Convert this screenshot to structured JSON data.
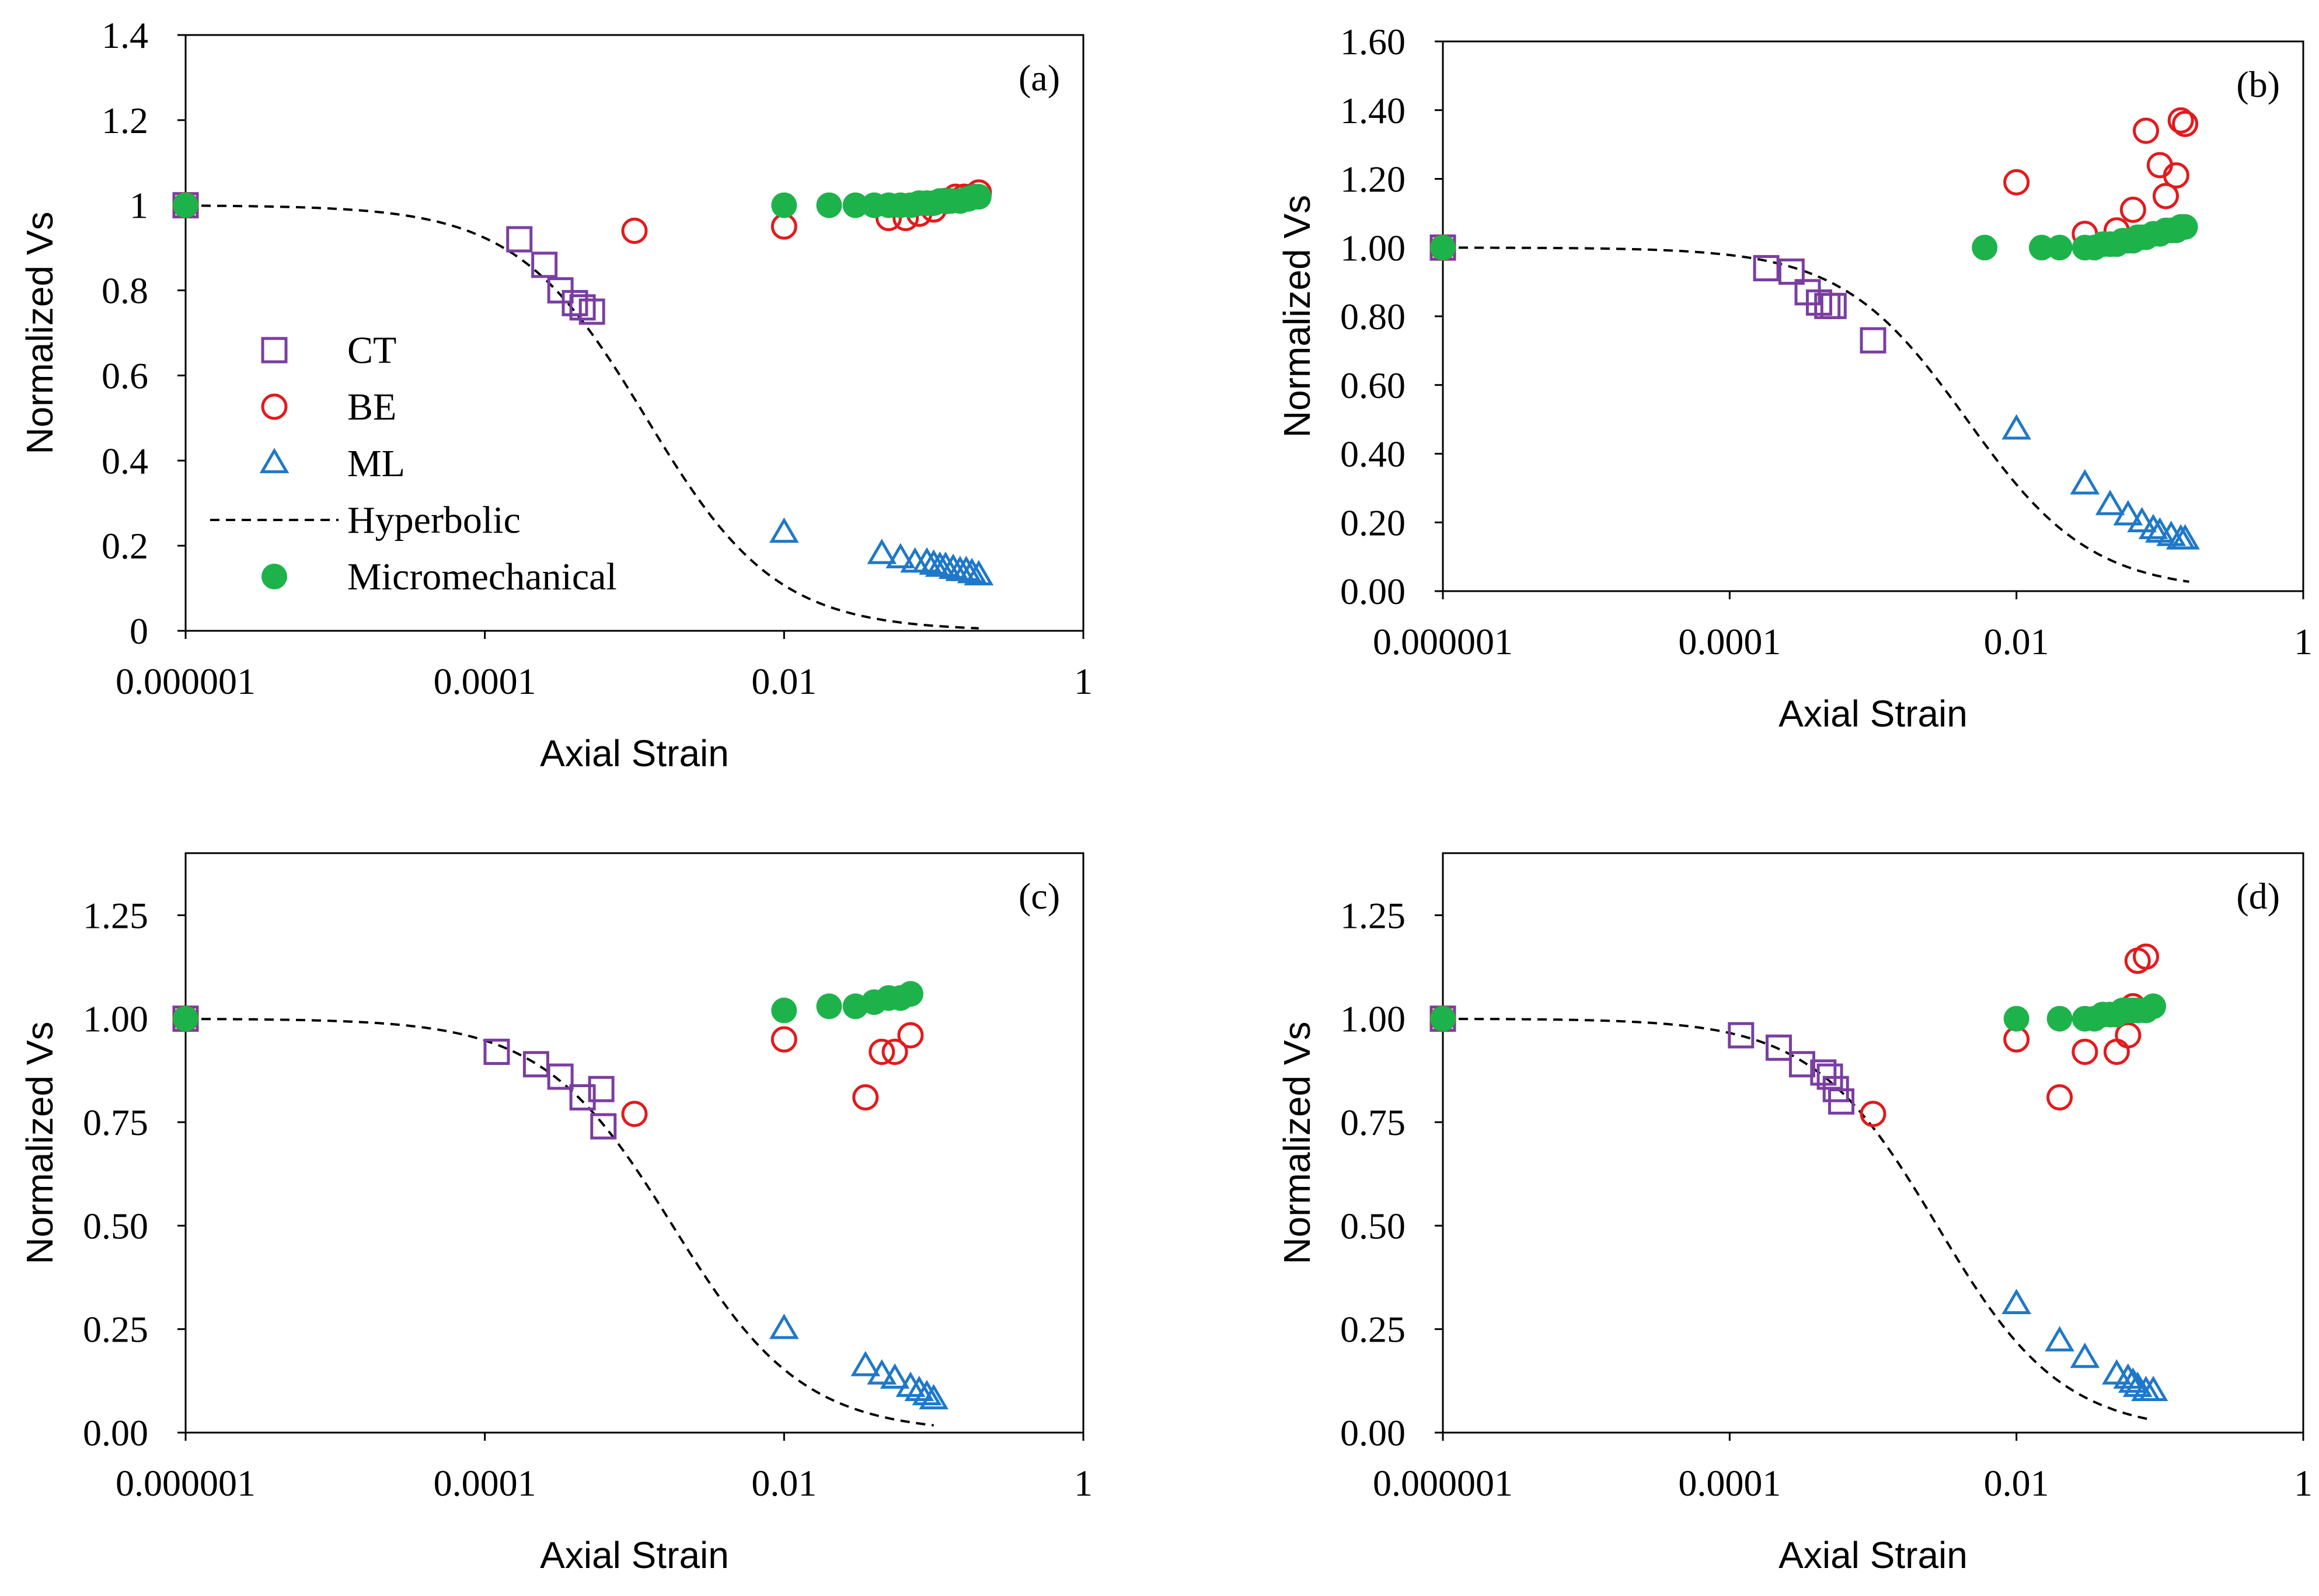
{
  "colors": {
    "ct": "#7a3ea1",
    "be": "#e31a1c",
    "ml": "#1f78c8",
    "hyperbolic": "#000000",
    "micromechanical": "#1db34a"
  },
  "legend": {
    "entries": [
      {
        "key": "ct",
        "label": "CT",
        "marker": "square-open"
      },
      {
        "key": "be",
        "label": "BE",
        "marker": "circle-open"
      },
      {
        "key": "ml",
        "label": "ML",
        "marker": "triangle-open"
      },
      {
        "key": "hyperbolic",
        "label": "Hyperbolic",
        "marker": "dashed-line"
      },
      {
        "key": "micromechanical",
        "label": "Micromechanical",
        "marker": "circle-filled"
      }
    ],
    "location": "panel (a), lower-left"
  },
  "chart_data": [
    {
      "type": "scatter",
      "panel_label": "(a)",
      "xlabel": "Axial Strain",
      "ylabel": "Normalized Vs",
      "xscale": "log",
      "xlim": [
        1e-06,
        1
      ],
      "xticks": [
        {
          "v": 1e-06,
          "label": "0.000001"
        },
        {
          "v": 0.0001,
          "label": "0.0001"
        },
        {
          "v": 0.01,
          "label": "0.01"
        },
        {
          "v": 1,
          "label": "1"
        }
      ],
      "ylim": [
        0,
        1.4
      ],
      "yticks": [
        {
          "v": 0,
          "label": "0"
        },
        {
          "v": 0.2,
          "label": "0.2"
        },
        {
          "v": 0.4,
          "label": "0.4"
        },
        {
          "v": 0.6,
          "label": "0.6"
        },
        {
          "v": 0.8,
          "label": "0.8"
        },
        {
          "v": 1.0,
          "label": "1"
        },
        {
          "v": 1.2,
          "label": "1.2"
        },
        {
          "v": 1.4,
          "label": "1.4"
        }
      ],
      "hyperbolic_ref": 0.0012,
      "hyperbolic_xmax": 0.2,
      "series": [
        {
          "name": "CT",
          "points": [
            [
              1e-06,
              1.0
            ],
            [
              0.00017,
              0.92
            ],
            [
              0.00025,
              0.86
            ],
            [
              0.00032,
              0.8
            ],
            [
              0.0004,
              0.77
            ],
            [
              0.00045,
              0.76
            ],
            [
              0.00052,
              0.75
            ]
          ]
        },
        {
          "name": "BE",
          "points": [
            [
              1e-06,
              1.0
            ],
            [
              0.001,
              0.94
            ],
            [
              0.01,
              0.95
            ],
            [
              0.05,
              0.97
            ],
            [
              0.065,
              0.97
            ],
            [
              0.08,
              0.98
            ],
            [
              0.1,
              0.99
            ],
            [
              0.12,
              1.01
            ],
            [
              0.14,
              1.02
            ],
            [
              0.16,
              1.02
            ],
            [
              0.18,
              1.02
            ],
            [
              0.2,
              1.03
            ]
          ]
        },
        {
          "name": "ML",
          "points": [
            [
              0.01,
              0.23
            ],
            [
              0.045,
              0.18
            ],
            [
              0.06,
              0.17
            ],
            [
              0.075,
              0.16
            ],
            [
              0.09,
              0.16
            ],
            [
              0.1,
              0.155
            ],
            [
              0.11,
              0.15
            ],
            [
              0.12,
              0.15
            ],
            [
              0.135,
              0.145
            ],
            [
              0.15,
              0.14
            ],
            [
              0.165,
              0.14
            ],
            [
              0.18,
              0.135
            ],
            [
              0.2,
              0.13
            ]
          ]
        },
        {
          "name": "Micromechanical",
          "points": [
            [
              1e-06,
              1.0
            ],
            [
              0.01,
              1.0
            ],
            [
              0.02,
              1.0
            ],
            [
              0.03,
              1.0
            ],
            [
              0.04,
              1.0
            ],
            [
              0.05,
              1.0
            ],
            [
              0.06,
              1.0
            ],
            [
              0.07,
              1.0
            ],
            [
              0.08,
              1.005
            ],
            [
              0.09,
              1.005
            ],
            [
              0.1,
              1.005
            ],
            [
              0.11,
              1.01
            ],
            [
              0.12,
              1.01
            ],
            [
              0.13,
              1.01
            ],
            [
              0.15,
              1.01
            ],
            [
              0.17,
              1.015
            ],
            [
              0.19,
              1.02
            ],
            [
              0.2,
              1.02
            ]
          ]
        }
      ]
    },
    {
      "type": "scatter",
      "panel_label": "(b)",
      "xlabel": "Axial Strain",
      "ylabel": "Normalized Vs",
      "xscale": "log",
      "xlim": [
        1e-06,
        1
      ],
      "xticks": [
        {
          "v": 1e-06,
          "label": "0.000001"
        },
        {
          "v": 0.0001,
          "label": "0.0001"
        },
        {
          "v": 0.01,
          "label": "0.01"
        },
        {
          "v": 1,
          "label": "1"
        }
      ],
      "ylim": [
        0,
        1.6
      ],
      "yticks": [
        {
          "v": 0,
          "label": "0.00"
        },
        {
          "v": 0.2,
          "label": "0.20"
        },
        {
          "v": 0.4,
          "label": "0.40"
        },
        {
          "v": 0.6,
          "label": "0.60"
        },
        {
          "v": 0.8,
          "label": "0.80"
        },
        {
          "v": 1.0,
          "label": "1.00"
        },
        {
          "v": 1.2,
          "label": "1.20"
        },
        {
          "v": 1.4,
          "label": "1.40"
        },
        {
          "v": 1.6,
          "label": "1.60"
        }
      ],
      "hyperbolic_ref": 0.0045,
      "hyperbolic_xmax": 0.16,
      "series": [
        {
          "name": "CT",
          "points": [
            [
              1e-06,
              1.0
            ],
            [
              0.00018,
              0.94
            ],
            [
              0.00027,
              0.93
            ],
            [
              0.00035,
              0.87
            ],
            [
              0.00042,
              0.84
            ],
            [
              0.00048,
              0.83
            ],
            [
              0.00053,
              0.83
            ],
            [
              0.001,
              0.73
            ]
          ]
        },
        {
          "name": "BE",
          "points": [
            [
              1e-06,
              1.0
            ],
            [
              0.01,
              1.19
            ],
            [
              0.03,
              1.04
            ],
            [
              0.05,
              1.05
            ],
            [
              0.065,
              1.11
            ],
            [
              0.08,
              1.34
            ],
            [
              0.1,
              1.24
            ],
            [
              0.11,
              1.15
            ],
            [
              0.13,
              1.21
            ],
            [
              0.14,
              1.37
            ],
            [
              0.15,
              1.36
            ]
          ]
        },
        {
          "name": "ML",
          "points": [
            [
              0.01,
              0.47
            ],
            [
              0.03,
              0.31
            ],
            [
              0.045,
              0.25
            ],
            [
              0.06,
              0.22
            ],
            [
              0.075,
              0.2
            ],
            [
              0.09,
              0.18
            ],
            [
              0.1,
              0.17
            ],
            [
              0.12,
              0.16
            ],
            [
              0.14,
              0.15
            ],
            [
              0.15,
              0.15
            ]
          ]
        },
        {
          "name": "Micromechanical",
          "points": [
            [
              1e-06,
              1.0
            ],
            [
              0.006,
              1.0
            ],
            [
              0.015,
              1.0
            ],
            [
              0.02,
              1.0
            ],
            [
              0.03,
              1.0
            ],
            [
              0.035,
              1.0
            ],
            [
              0.04,
              1.01
            ],
            [
              0.045,
              1.01
            ],
            [
              0.05,
              1.01
            ],
            [
              0.055,
              1.02
            ],
            [
              0.06,
              1.02
            ],
            [
              0.065,
              1.02
            ],
            [
              0.07,
              1.03
            ],
            [
              0.075,
              1.03
            ],
            [
              0.08,
              1.03
            ],
            [
              0.09,
              1.04
            ],
            [
              0.1,
              1.04
            ],
            [
              0.11,
              1.05
            ],
            [
              0.12,
              1.05
            ],
            [
              0.13,
              1.05
            ],
            [
              0.14,
              1.06
            ],
            [
              0.15,
              1.06
            ]
          ]
        }
      ]
    },
    {
      "type": "scatter",
      "panel_label": "(c)",
      "xlabel": "Axial Strain",
      "ylabel": "Normalized Vs",
      "xscale": "log",
      "xlim": [
        1e-06,
        1
      ],
      "xticks": [
        {
          "v": 1e-06,
          "label": "0.000001"
        },
        {
          "v": 0.0001,
          "label": "0.0001"
        },
        {
          "v": 0.01,
          "label": "0.01"
        },
        {
          "v": 1,
          "label": "1"
        }
      ],
      "ylim": [
        0,
        1.4
      ],
      "yticks": [
        {
          "v": 0,
          "label": "0.00"
        },
        {
          "v": 0.25,
          "label": "0.25"
        },
        {
          "v": 0.5,
          "label": "0.50"
        },
        {
          "v": 0.75,
          "label": "0.75"
        },
        {
          "v": 1.0,
          "label": "1.00"
        },
        {
          "v": 1.25,
          "label": "1.25"
        }
      ],
      "hyperbolic_ref": 0.0018,
      "hyperbolic_xmax": 0.1,
      "series": [
        {
          "name": "CT",
          "points": [
            [
              1e-06,
              1.0
            ],
            [
              0.00012,
              0.92
            ],
            [
              0.00022,
              0.89
            ],
            [
              0.00032,
              0.86
            ],
            [
              0.00045,
              0.81
            ],
            [
              0.0006,
              0.83
            ],
            [
              0.00062,
              0.74
            ]
          ]
        },
        {
          "name": "BE",
          "points": [
            [
              1e-06,
              1.0
            ],
            [
              0.001,
              0.77
            ],
            [
              0.01,
              0.95
            ],
            [
              0.035,
              0.81
            ],
            [
              0.045,
              0.92
            ],
            [
              0.055,
              0.92
            ],
            [
              0.07,
              0.96
            ]
          ]
        },
        {
          "name": "ML",
          "points": [
            [
              0.01,
              0.25
            ],
            [
              0.035,
              0.16
            ],
            [
              0.045,
              0.14
            ],
            [
              0.055,
              0.13
            ],
            [
              0.07,
              0.11
            ],
            [
              0.08,
              0.1
            ],
            [
              0.09,
              0.09
            ],
            [
              0.1,
              0.08
            ]
          ]
        },
        {
          "name": "Micromechanical",
          "points": [
            [
              1e-06,
              1.0
            ],
            [
              0.01,
              1.02
            ],
            [
              0.02,
              1.03
            ],
            [
              0.03,
              1.03
            ],
            [
              0.04,
              1.04
            ],
            [
              0.05,
              1.05
            ],
            [
              0.06,
              1.05
            ],
            [
              0.07,
              1.06
            ]
          ]
        }
      ]
    },
    {
      "type": "scatter",
      "panel_label": "(d)",
      "xlabel": "Axial Strain",
      "ylabel": "Normalized Vs",
      "xscale": "log",
      "xlim": [
        1e-06,
        1
      ],
      "xticks": [
        {
          "v": 1e-06,
          "label": "0.000001"
        },
        {
          "v": 0.0001,
          "label": "0.0001"
        },
        {
          "v": 0.01,
          "label": "0.01"
        },
        {
          "v": 1,
          "label": "1"
        }
      ],
      "ylim": [
        0,
        1.4
      ],
      "yticks": [
        {
          "v": 0,
          "label": "0.00"
        },
        {
          "v": 0.25,
          "label": "0.25"
        },
        {
          "v": 0.5,
          "label": "0.50"
        },
        {
          "v": 0.75,
          "label": "0.75"
        },
        {
          "v": 1.0,
          "label": "1.00"
        },
        {
          "v": 1.25,
          "label": "1.25"
        }
      ],
      "hyperbolic_ref": 0.0028,
      "hyperbolic_xmax": 0.085,
      "series": [
        {
          "name": "CT",
          "points": [
            [
              1e-06,
              1.0
            ],
            [
              0.00012,
              0.96
            ],
            [
              0.00022,
              0.93
            ],
            [
              0.00032,
              0.89
            ],
            [
              0.00045,
              0.87
            ],
            [
              0.0005,
              0.86
            ],
            [
              0.00055,
              0.83
            ],
            [
              0.0006,
              0.8
            ]
          ]
        },
        {
          "name": "BE",
          "points": [
            [
              1e-06,
              1.0
            ],
            [
              0.001,
              0.77
            ],
            [
              0.01,
              0.95
            ],
            [
              0.02,
              0.81
            ],
            [
              0.03,
              0.92
            ],
            [
              0.05,
              0.92
            ],
            [
              0.06,
              0.96
            ],
            [
              0.065,
              1.03
            ],
            [
              0.07,
              1.14
            ],
            [
              0.08,
              1.15
            ]
          ]
        },
        {
          "name": "ML",
          "points": [
            [
              0.01,
              0.31
            ],
            [
              0.02,
              0.22
            ],
            [
              0.03,
              0.18
            ],
            [
              0.05,
              0.14
            ],
            [
              0.06,
              0.13
            ],
            [
              0.065,
              0.12
            ],
            [
              0.07,
              0.11
            ],
            [
              0.08,
              0.1
            ],
            [
              0.09,
              0.1
            ]
          ]
        },
        {
          "name": "Micromechanical",
          "points": [
            [
              1e-06,
              1.0
            ],
            [
              0.01,
              1.0
            ],
            [
              0.02,
              1.0
            ],
            [
              0.03,
              1.0
            ],
            [
              0.035,
              1.0
            ],
            [
              0.04,
              1.01
            ],
            [
              0.045,
              1.01
            ],
            [
              0.05,
              1.01
            ],
            [
              0.055,
              1.02
            ],
            [
              0.06,
              1.02
            ],
            [
              0.065,
              1.02
            ],
            [
              0.07,
              1.02
            ],
            [
              0.08,
              1.02
            ],
            [
              0.09,
              1.03
            ]
          ]
        }
      ]
    }
  ]
}
